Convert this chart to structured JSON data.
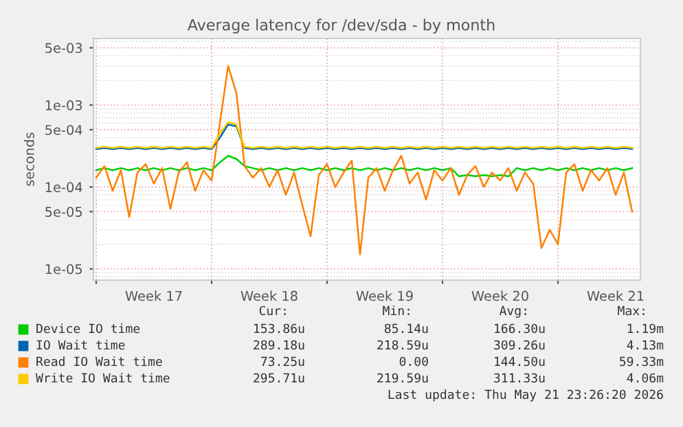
{
  "chart_data": {
    "type": "line",
    "title": "Average latency for /dev/sda - by month",
    "ylabel": "seconds",
    "log": "y",
    "grid": true,
    "legend": "bottom",
    "marker": "none",
    "line_style": "solid",
    "xlim": [
      "2026-04-19T20:00",
      "2026-05-23T00:00"
    ],
    "xticks": [
      {
        "value": "2026-04-20",
        "label": null
      },
      {
        "value": "2026-04-23T12:00",
        "label": "Week 17"
      },
      {
        "value": "2026-04-27",
        "label": null
      },
      {
        "value": "2026-04-30T12:00",
        "label": "Week 18"
      },
      {
        "value": "2026-05-04",
        "label": null
      },
      {
        "value": "2026-05-07T12:00",
        "label": "Week 19"
      },
      {
        "value": "2026-05-11",
        "label": null
      },
      {
        "value": "2026-05-14T12:00",
        "label": "Week 20"
      },
      {
        "value": "2026-05-18",
        "label": null
      },
      {
        "value": "2026-05-21T12:00",
        "label": "Week 21"
      }
    ],
    "ylim": [
      7.3e-06,
      0.0065
    ],
    "yticks": [
      {
        "value": 1e-05,
        "label": "1e-05"
      },
      {
        "value": 5e-05,
        "label": "5e-05"
      },
      {
        "value": 0.0001,
        "label": "1e-04"
      },
      {
        "value": 0.0005,
        "label": "5e-04"
      },
      {
        "value": 0.001,
        "label": "1e-03"
      },
      {
        "value": 0.005,
        "label": "5e-03"
      }
    ],
    "x": [
      "2026-04-20T00:00",
      "2026-04-20T12:00",
      "2026-04-21T00:00",
      "2026-04-21T12:00",
      "2026-04-22T00:00",
      "2026-04-22T12:00",
      "2026-04-23T00:00",
      "2026-04-23T12:00",
      "2026-04-24T00:00",
      "2026-04-24T12:00",
      "2026-04-25T00:00",
      "2026-04-25T12:00",
      "2026-04-26T00:00",
      "2026-04-26T12:00",
      "2026-04-27T00:00",
      "2026-04-27T12:00",
      "2026-04-28T00:00",
      "2026-04-28T12:00",
      "2026-04-29T00:00",
      "2026-04-29T12:00",
      "2026-04-30T00:00",
      "2026-04-30T12:00",
      "2026-05-01T00:00",
      "2026-05-01T12:00",
      "2026-05-02T00:00",
      "2026-05-02T12:00",
      "2026-05-03T00:00",
      "2026-05-03T12:00",
      "2026-05-04T00:00",
      "2026-05-04T12:00",
      "2026-05-05T00:00",
      "2026-05-05T12:00",
      "2026-05-06T00:00",
      "2026-05-06T12:00",
      "2026-05-07T00:00",
      "2026-05-07T12:00",
      "2026-05-08T00:00",
      "2026-05-08T12:00",
      "2026-05-09T00:00",
      "2026-05-09T12:00",
      "2026-05-10T00:00",
      "2026-05-10T12:00",
      "2026-05-11T00:00",
      "2026-05-11T12:00",
      "2026-05-12T00:00",
      "2026-05-12T12:00",
      "2026-05-13T00:00",
      "2026-05-13T12:00",
      "2026-05-14T00:00",
      "2026-05-14T12:00",
      "2026-05-15T00:00",
      "2026-05-15T12:00",
      "2026-05-16T00:00",
      "2026-05-16T12:00",
      "2026-05-17T00:00",
      "2026-05-17T12:00",
      "2026-05-18T00:00",
      "2026-05-18T12:00",
      "2026-05-19T00:00",
      "2026-05-19T12:00",
      "2026-05-20T00:00",
      "2026-05-20T12:00",
      "2026-05-21T00:00",
      "2026-05-21T12:00",
      "2026-05-22T00:00",
      "2026-05-22T12:00"
    ],
    "series": [
      {
        "name": "Device IO time",
        "color": "#00cc00",
        "values": [
          0.00016,
          0.00017,
          0.00016,
          0.00017,
          0.00016,
          0.00017,
          0.00016,
          0.00017,
          0.00016,
          0.00017,
          0.00016,
          0.00017,
          0.00016,
          0.00017,
          0.00016,
          0.0002,
          0.00024,
          0.00022,
          0.00018,
          0.00017,
          0.00016,
          0.00017,
          0.00016,
          0.00017,
          0.00016,
          0.00017,
          0.00016,
          0.00017,
          0.00016,
          0.00017,
          0.00016,
          0.00017,
          0.00016,
          0.00017,
          0.00016,
          0.00017,
          0.00016,
          0.00017,
          0.00016,
          0.00017,
          0.00016,
          0.00017,
          0.00016,
          0.00017,
          0.000135,
          0.00014,
          0.000135,
          0.00014,
          0.000135,
          0.00014,
          0.000135,
          0.00017,
          0.00016,
          0.00017,
          0.00016,
          0.00017,
          0.00016,
          0.00017,
          0.00016,
          0.00017,
          0.00016,
          0.00017,
          0.00016,
          0.00017,
          0.00016,
          0.00017
        ]
      },
      {
        "name": "IO Wait time",
        "color": "#0066b3",
        "values": [
          0.00029,
          0.0003,
          0.00029,
          0.0003,
          0.00029,
          0.0003,
          0.00029,
          0.0003,
          0.00029,
          0.0003,
          0.00029,
          0.0003,
          0.00029,
          0.0003,
          0.00029,
          0.0004,
          0.00058,
          0.00055,
          0.0003,
          0.00029,
          0.0003,
          0.00029,
          0.0003,
          0.00029,
          0.0003,
          0.00029,
          0.0003,
          0.00029,
          0.0003,
          0.00029,
          0.0003,
          0.00029,
          0.0003,
          0.00029,
          0.0003,
          0.00029,
          0.0003,
          0.00029,
          0.0003,
          0.00029,
          0.0003,
          0.00029,
          0.0003,
          0.00029,
          0.0003,
          0.00029,
          0.0003,
          0.00029,
          0.0003,
          0.00029,
          0.0003,
          0.00029,
          0.0003,
          0.00029,
          0.0003,
          0.00029,
          0.0003,
          0.00029,
          0.0003,
          0.00029,
          0.0003,
          0.00029,
          0.0003,
          0.00029,
          0.0003,
          0.00029
        ]
      },
      {
        "name": "Read IO Wait time",
        "color": "#ff8000",
        "values": [
          0.00013,
          0.00018,
          9e-05,
          0.00016,
          4.3e-05,
          0.00015,
          0.00019,
          0.00011,
          0.00017,
          5.4e-05,
          0.00015,
          0.0002,
          9e-05,
          0.00016,
          0.00012,
          0.0006,
          0.003,
          0.0014,
          0.00018,
          0.00013,
          0.00017,
          0.0001,
          0.00016,
          8e-05,
          0.00015,
          6e-05,
          2.5e-05,
          0.00014,
          0.00019,
          0.0001,
          0.00015,
          0.00021,
          1.5e-05,
          0.00013,
          0.00017,
          9e-05,
          0.00016,
          0.00024,
          0.00011,
          0.00015,
          7e-05,
          0.00016,
          0.00012,
          0.00017,
          8e-05,
          0.00014,
          0.00018,
          0.0001,
          0.00015,
          0.00012,
          0.00017,
          9e-05,
          0.00015,
          0.00011,
          1.8e-05,
          3e-05,
          2e-05,
          0.00015,
          0.00019,
          9e-05,
          0.00016,
          0.00012,
          0.00017,
          8e-05,
          0.00015,
          5e-05
        ]
      },
      {
        "name": "Write IO Wait time",
        "color": "#ffcc00",
        "values": [
          0.0003,
          0.00031,
          0.0003,
          0.00031,
          0.0003,
          0.00031,
          0.0003,
          0.00031,
          0.0003,
          0.00031,
          0.0003,
          0.00031,
          0.0003,
          0.00031,
          0.0003,
          0.00045,
          0.00062,
          0.00058,
          0.00031,
          0.0003,
          0.00031,
          0.0003,
          0.00031,
          0.0003,
          0.00031,
          0.0003,
          0.00031,
          0.0003,
          0.00031,
          0.0003,
          0.00031,
          0.0003,
          0.00031,
          0.0003,
          0.00031,
          0.0003,
          0.00031,
          0.0003,
          0.00031,
          0.0003,
          0.00031,
          0.0003,
          0.00031,
          0.0003,
          0.00031,
          0.0003,
          0.00031,
          0.0003,
          0.00031,
          0.0003,
          0.00031,
          0.0003,
          0.00031,
          0.0003,
          0.00031,
          0.0003,
          0.00031,
          0.0003,
          0.00031,
          0.0003,
          0.00031,
          0.0003,
          0.00031,
          0.0003,
          0.00031,
          0.0003
        ]
      }
    ],
    "annotations": [
      "Cur:",
      "Min:",
      "Avg:",
      "Max:",
      "153.86u",
      "85.14u",
      "166.30u",
      "1.19m",
      "289.18u",
      "218.59u",
      "309.26u",
      "4.13m",
      "73.25u",
      "0.00",
      "144.50u",
      "59.33m",
      "295.71u",
      "219.59u",
      "311.33u",
      "4.06m",
      "Last update: Thu May 21 23:26:20 2026"
    ]
  }
}
